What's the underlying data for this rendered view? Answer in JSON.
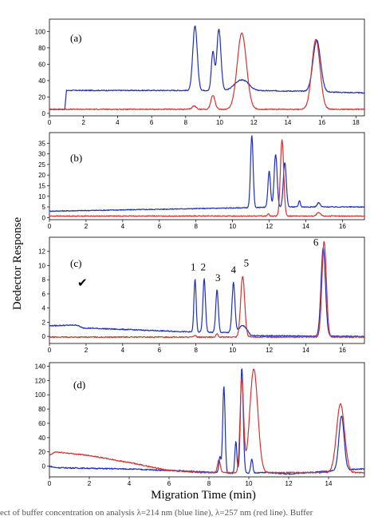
{
  "figure": {
    "y_axis_title": "Dedector Response",
    "x_axis_title": "Migration Time (min)",
    "caption": "ect of buffer concentration on analysis λ=214 nm (blue line), λ=257 nm (red line). Buffer ",
    "checkmark": "✔",
    "colors": {
      "blue": "#1f2fbf",
      "red": "#d8322f",
      "axis": "#000000"
    }
  },
  "chart_data": [
    {
      "type": "line",
      "panel_label": "(a)",
      "xlim": [
        0,
        18.5
      ],
      "ylim": [
        -3,
        115
      ],
      "x_ticks": [
        0,
        2,
        4,
        6,
        8,
        10,
        12,
        14,
        16,
        18
      ],
      "y_ticks": [
        0,
        20,
        40,
        60,
        80,
        100
      ],
      "series": [
        {
          "color": "blue",
          "baseline": [
            [
              0,
              5
            ],
            [
              0.9,
              5
            ],
            [
              1.0,
              28
            ],
            [
              5,
              28
            ],
            [
              8.2,
              28
            ],
            [
              10.8,
              28
            ],
            [
              11.4,
              28
            ],
            [
              15.2,
              27
            ],
            [
              16.4,
              26
            ],
            [
              18.5,
              25
            ]
          ],
          "peaks": [
            {
              "x": 8.55,
              "h": 79,
              "w": 0.13
            },
            {
              "x": 9.6,
              "h": 47,
              "w": 0.09
            },
            {
              "x": 9.95,
              "h": 75,
              "w": 0.12
            },
            {
              "x": 11.05,
              "h": 8,
              "w": 0.3
            },
            {
              "x": 11.5,
              "h": 9,
              "w": 0.3
            },
            {
              "x": 15.7,
              "h": 63,
              "w": 0.22
            }
          ]
        },
        {
          "color": "red",
          "baseline": [
            [
              0,
              5
            ],
            [
              9,
              5
            ],
            [
              12,
              5
            ],
            [
              18.5,
              5
            ]
          ],
          "peaks": [
            {
              "x": 8.5,
              "h": 4,
              "w": 0.12
            },
            {
              "x": 9.6,
              "h": 17,
              "w": 0.12
            },
            {
              "x": 11.3,
              "h": 93,
              "w": 0.27
            },
            {
              "x": 15.65,
              "h": 85,
              "w": 0.24
            }
          ]
        }
      ]
    },
    {
      "type": "line",
      "panel_label": "(b)",
      "xlim": [
        0,
        17.2
      ],
      "ylim": [
        -1,
        40
      ],
      "x_ticks": [
        0,
        2,
        4,
        6,
        8,
        10,
        12,
        14,
        16
      ],
      "y_ticks": [
        0,
        5,
        10,
        15,
        20,
        25,
        30,
        35
      ],
      "series": [
        {
          "color": "blue",
          "baseline": [
            [
              0,
              3
            ],
            [
              10,
              4.5
            ],
            [
              13,
              5
            ],
            [
              17.2,
              5
            ]
          ],
          "peaks": [
            {
              "x": 11.05,
              "h": 34,
              "w": 0.07
            },
            {
              "x": 12.0,
              "h": 17,
              "w": 0.07
            },
            {
              "x": 12.35,
              "h": 25,
              "w": 0.08
            },
            {
              "x": 12.85,
              "h": 21,
              "w": 0.08
            },
            {
              "x": 13.65,
              "h": 3,
              "w": 0.05
            },
            {
              "x": 14.7,
              "h": 2,
              "w": 0.08
            }
          ]
        },
        {
          "color": "red",
          "baseline": [
            [
              0,
              0.7
            ],
            [
              17.2,
              0.7
            ]
          ],
          "peaks": [
            {
              "x": 11.95,
              "h": 1.2,
              "w": 0.05
            },
            {
              "x": 12.7,
              "h": 36,
              "w": 0.09
            },
            {
              "x": 14.7,
              "h": 1.6,
              "w": 0.1
            }
          ]
        }
      ]
    },
    {
      "type": "line",
      "panel_label": "(c)",
      "xlim": [
        0,
        17.2
      ],
      "ylim": [
        -1,
        14
      ],
      "x_ticks": [
        0,
        2,
        4,
        6,
        8,
        10,
        12,
        14,
        16
      ],
      "y_ticks": [
        0,
        2,
        4,
        6,
        8,
        10,
        12
      ],
      "peak_labels": [
        {
          "text": "1",
          "x": 7.85,
          "y": 9.3
        },
        {
          "text": "2",
          "x": 8.4,
          "y": 9.3
        },
        {
          "text": "3",
          "x": 9.2,
          "y": 7.8
        },
        {
          "text": "4",
          "x": 10.05,
          "y": 8.9
        },
        {
          "text": "5",
          "x": 10.75,
          "y": 9.9
        },
        {
          "text": "6",
          "x": 14.55,
          "y": 12.8
        }
      ],
      "series": [
        {
          "color": "blue",
          "baseline": [
            [
              0,
              1.5
            ],
            [
              1.5,
              1.6
            ],
            [
              1.8,
              1.2
            ],
            [
              8,
              0.6
            ],
            [
              10.8,
              0.5
            ],
            [
              11,
              0.1
            ],
            [
              17.2,
              0
            ]
          ],
          "peaks": [
            {
              "x": 7.95,
              "h": 7.5,
              "w": 0.06
            },
            {
              "x": 8.45,
              "h": 7.5,
              "w": 0.07
            },
            {
              "x": 9.15,
              "h": 6,
              "w": 0.07
            },
            {
              "x": 10.05,
              "h": 7,
              "w": 0.08
            },
            {
              "x": 10.55,
              "h": 1.0,
              "w": 0.2
            },
            {
              "x": 14.95,
              "h": 12.5,
              "w": 0.12
            }
          ]
        },
        {
          "color": "red",
          "baseline": [
            [
              0,
              -0.1
            ],
            [
              17.2,
              -0.1
            ]
          ],
          "peaks": [
            {
              "x": 7.95,
              "h": 0.3,
              "w": 0.05
            },
            {
              "x": 9.15,
              "h": 0.5,
              "w": 0.05
            },
            {
              "x": 10.55,
              "h": 8.6,
              "w": 0.11
            },
            {
              "x": 15.0,
              "h": 13.5,
              "w": 0.12
            }
          ]
        }
      ]
    },
    {
      "type": "line",
      "panel_label": "(d)",
      "xlim": [
        0,
        15.8
      ],
      "ylim": [
        -15,
        145
      ],
      "x_ticks": [
        0,
        2,
        4,
        6,
        8,
        10,
        12,
        14
      ],
      "y_ticks": [
        0,
        20,
        40,
        60,
        80,
        100,
        120,
        140
      ],
      "series": [
        {
          "color": "blue",
          "baseline": [
            [
              0,
              0
            ],
            [
              0.3,
              -2
            ],
            [
              2,
              -3
            ],
            [
              4,
              -4
            ],
            [
              7,
              -7
            ],
            [
              9,
              -10
            ],
            [
              11,
              -9
            ],
            [
              12,
              -11
            ],
            [
              14.4,
              -6
            ],
            [
              15.6,
              -4
            ]
          ],
          "peaks": [
            {
              "x": 8.55,
              "h": 22,
              "w": 0.05
            },
            {
              "x": 8.75,
              "h": 122,
              "w": 0.06
            },
            {
              "x": 9.35,
              "h": 45,
              "w": 0.05
            },
            {
              "x": 9.65,
              "h": 147,
              "w": 0.07
            },
            {
              "x": 10.15,
              "h": 20,
              "w": 0.05
            },
            {
              "x": 14.65,
              "h": 76,
              "w": 0.13
            }
          ]
        },
        {
          "color": "red",
          "baseline": [
            [
              0,
              15
            ],
            [
              0.3,
              20
            ],
            [
              2,
              15
            ],
            [
              4,
              5
            ],
            [
              6,
              -6
            ],
            [
              7.5,
              -9
            ],
            [
              9,
              -9
            ],
            [
              11,
              -9
            ],
            [
              15.6,
              -9
            ]
          ],
          "peaks": [
            {
              "x": 8.5,
              "h": 18,
              "w": 0.07
            },
            {
              "x": 9.65,
              "h": 130,
              "w": 0.09
            },
            {
              "x": 10.25,
              "h": 145,
              "w": 0.2
            },
            {
              "x": 14.6,
              "h": 96,
              "w": 0.2
            }
          ]
        }
      ]
    }
  ]
}
